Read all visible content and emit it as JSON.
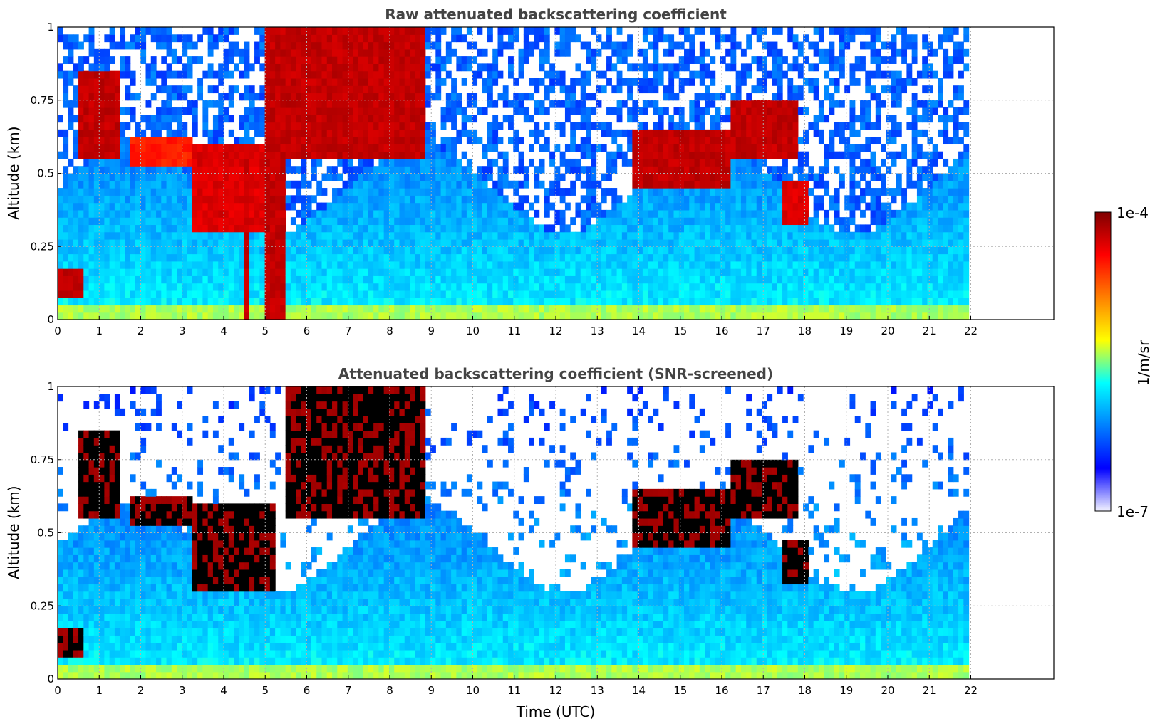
{
  "chart_data": [
    {
      "type": "heatmap",
      "title": "Raw attenuated backscattering coefficient",
      "xlabel": "",
      "ylabel": "Altitude (km)",
      "xlim": [
        0,
        24
      ],
      "ylim": [
        0,
        1
      ],
      "xticks": [
        0,
        1,
        2,
        3,
        4,
        5,
        6,
        7,
        8,
        9,
        10,
        11,
        12,
        13,
        14,
        15,
        16,
        17,
        18,
        19,
        20,
        21,
        22
      ],
      "xtick_labels": [
        "0",
        "1",
        "2",
        "3",
        "4",
        "5",
        "6",
        "7",
        "8",
        "9",
        "10",
        "11",
        "12",
        "13",
        "14",
        "15",
        "16",
        "17",
        "18",
        "19",
        "20",
        "21",
        "22"
      ],
      "yticks": [
        0,
        0.25,
        0.5,
        0.75,
        1
      ],
      "ytick_labels": [
        "0",
        "0.25",
        "0.5",
        "0.75",
        "1"
      ],
      "grid": true,
      "data_x_range": [
        0,
        21.95
      ],
      "cloud_layers": [
        {
          "t": [
            0.0,
            0.6
          ],
          "alt": [
            0.08,
            0.18
          ],
          "level": 0.95
        },
        {
          "t": [
            0.5,
            1.5
          ],
          "alt": [
            0.55,
            0.85
          ],
          "level": 0.95
        },
        {
          "t": [
            1.8,
            3.3
          ],
          "alt": [
            0.52,
            0.62
          ],
          "level": 0.85
        },
        {
          "t": [
            3.3,
            5.2
          ],
          "alt": [
            0.3,
            0.6
          ],
          "level": 0.92
        },
        {
          "t": [
            4.45,
            4.6
          ],
          "alt": [
            0.0,
            0.55
          ],
          "level": 0.95
        },
        {
          "t": [
            5.0,
            5.45
          ],
          "alt": [
            0.0,
            1.0
          ],
          "level": 0.95
        },
        {
          "t": [
            5.5,
            8.8
          ],
          "alt": [
            0.55,
            1.0
          ],
          "level": 0.95
        },
        {
          "t": [
            13.9,
            16.2
          ],
          "alt": [
            0.45,
            0.65
          ],
          "level": 0.95
        },
        {
          "t": [
            16.2,
            17.8
          ],
          "alt": [
            0.55,
            0.75
          ],
          "level": 0.95
        },
        {
          "t": [
            17.5,
            18.05
          ],
          "alt": [
            0.32,
            0.48
          ],
          "level": 0.92
        }
      ]
    },
    {
      "type": "heatmap",
      "title": "Attenuated backscattering coefficient (SNR-screened)",
      "xlabel": "Time (UTC)",
      "ylabel": "Altitude (km)",
      "xlim": [
        0,
        24
      ],
      "ylim": [
        0,
        1
      ],
      "xticks": [
        0,
        1,
        2,
        3,
        4,
        5,
        6,
        7,
        8,
        9,
        10,
        11,
        12,
        13,
        14,
        15,
        16,
        17,
        18,
        19,
        20,
        21,
        22
      ],
      "xtick_labels": [
        "0",
        "1",
        "2",
        "3",
        "4",
        "5",
        "6",
        "7",
        "8",
        "9",
        "10",
        "11",
        "12",
        "13",
        "14",
        "15",
        "16",
        "17",
        "18",
        "19",
        "20",
        "21",
        "22"
      ],
      "yticks": [
        0,
        0.25,
        0.5,
        0.75,
        1
      ],
      "ytick_labels": [
        "0",
        "0.25",
        "0.5",
        "0.75",
        "1"
      ],
      "grid": true,
      "data_x_range": [
        0,
        21.95
      ],
      "cloud_layers": [
        {
          "t": [
            0.0,
            0.6
          ],
          "alt": [
            0.08,
            0.18
          ],
          "level": 1.0
        },
        {
          "t": [
            0.5,
            1.5
          ],
          "alt": [
            0.55,
            0.85
          ],
          "level": 1.0
        },
        {
          "t": [
            1.8,
            3.3
          ],
          "alt": [
            0.52,
            0.62
          ],
          "level": 1.0
        },
        {
          "t": [
            3.3,
            5.2
          ],
          "alt": [
            0.3,
            0.6
          ],
          "level": 1.0
        },
        {
          "t": [
            5.5,
            8.8
          ],
          "alt": [
            0.55,
            1.0
          ],
          "level": 1.0
        },
        {
          "t": [
            13.9,
            16.2
          ],
          "alt": [
            0.45,
            0.65
          ],
          "level": 1.0
        },
        {
          "t": [
            16.2,
            17.8
          ],
          "alt": [
            0.55,
            0.75
          ],
          "level": 1.0
        },
        {
          "t": [
            17.5,
            18.05
          ],
          "alt": [
            0.32,
            0.48
          ],
          "level": 1.0
        }
      ]
    }
  ],
  "colorbar": {
    "label": "1/m/sr",
    "max_label": "1e-4",
    "min_label": "1e-7",
    "scale": "log",
    "range": [
      1e-07,
      0.0001
    ],
    "colors": [
      "#f2f2ff",
      "#0000ff",
      "#0080ff",
      "#00ffff",
      "#ffff00",
      "#ff8000",
      "#ff0000",
      "#800000"
    ]
  }
}
